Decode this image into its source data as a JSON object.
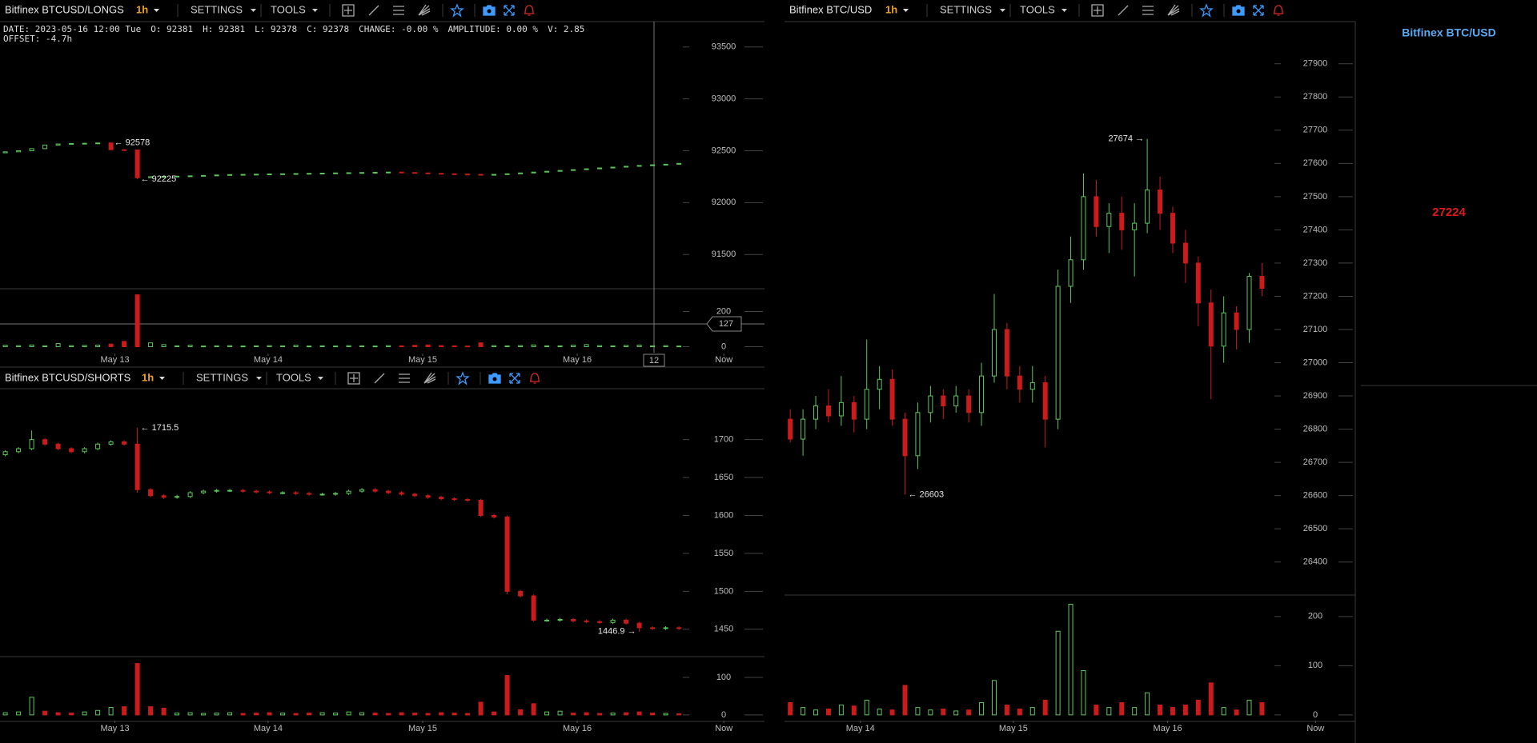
{
  "panels": [
    {
      "toolbar": {
        "symbol": "Bitfinex BTCUSD/LONGS",
        "interval": "1h",
        "settings": "SETTINGS",
        "tools": "TOOLS"
      },
      "legend": {
        "date": "DATE: 2023-05-16 12:00 Tue",
        "open": "O: 92381",
        "high": "H: 92381",
        "low": "L: 92378",
        "close": "C: 92378",
        "change": "CHANGE: -0.00 %",
        "amplitude": "AMPLITUDE: 0.00 %",
        "volume": "V: 2.85",
        "offset": "OFFSET: -4.7h"
      },
      "crosshair": {
        "x_label": "12",
        "y_label": "127"
      },
      "chart": {
        "type": "candlestick",
        "up_color": "#5cc85c",
        "down_color": "#cc1b1b",
        "xlim": [
          -0.4,
          57.48
        ],
        "xticks": [
          {
            "value": 8.3,
            "label": "May 13"
          },
          {
            "value": 19.9,
            "label": "May 14"
          },
          {
            "value": 31.6,
            "label": "May 15"
          },
          {
            "value": 43.3,
            "label": "May 16"
          },
          {
            "value": 54.4,
            "label": "Now"
          }
        ],
        "ylim": [
          91170,
          93745
        ],
        "yticks": [
          91500,
          92000,
          92500,
          93000,
          93500
        ],
        "open": [
          92480,
          92490,
          92500,
          92520,
          92555,
          92565,
          92570,
          92572,
          92575,
          92510,
          92508,
          92240,
          92250,
          92252,
          92255,
          92258,
          92262,
          92266,
          92270,
          92272,
          92274,
          92276,
          92278,
          92280,
          92282,
          92284,
          92286,
          92288,
          92290,
          92292,
          92294,
          92290,
          92286,
          92282,
          92278,
          92275,
          92272,
          92270,
          92272,
          92278,
          92286,
          92294,
          92302,
          92310,
          92318,
          92326,
          92334,
          92342,
          92350,
          92358,
          92364,
          92370
        ],
        "high": [
          92492,
          92502,
          92522,
          92557,
          92567,
          92572,
          92574,
          92577,
          92578,
          92512,
          92512,
          92252,
          92254,
          92257,
          92260,
          92264,
          92268,
          92272,
          92274,
          92276,
          92278,
          92280,
          92282,
          92284,
          92286,
          92288,
          92290,
          92292,
          92294,
          92296,
          92296,
          92292,
          92288,
          92284,
          92280,
          92277,
          92274,
          92274,
          92280,
          92288,
          92296,
          92304,
          92312,
          92320,
          92328,
          92336,
          92344,
          92352,
          92360,
          92366,
          92372,
          92380
        ],
        "low": [
          92478,
          92488,
          92498,
          92518,
          92553,
          92563,
          92568,
          92570,
          92508,
          92506,
          92225,
          92238,
          92248,
          92250,
          92253,
          92256,
          92260,
          92264,
          92268,
          92270,
          92272,
          92274,
          92276,
          92278,
          92280,
          92282,
          92284,
          92286,
          92288,
          92290,
          92288,
          92284,
          92280,
          92276,
          92273,
          92270,
          92268,
          92268,
          92270,
          92276,
          92284,
          92292,
          92300,
          92308,
          92316,
          92324,
          92332,
          92340,
          92348,
          92356,
          92362,
          92368
        ],
        "close": [
          92490,
          92500,
          92520,
          92555,
          92565,
          92570,
          92572,
          92575,
          92510,
          92508,
          92240,
          92250,
          92252,
          92255,
          92258,
          92262,
          92266,
          92270,
          92272,
          92274,
          92276,
          92278,
          92280,
          92282,
          92284,
          92286,
          92288,
          92290,
          92292,
          92294,
          92290,
          92286,
          92282,
          92278,
          92275,
          92272,
          92270,
          92272,
          92278,
          92286,
          92294,
          92302,
          92310,
          92318,
          92326,
          92334,
          92342,
          92350,
          92358,
          92364,
          92370,
          92378
        ],
        "annotations": [
          {
            "index": 8,
            "field": "high",
            "side": "right",
            "label": "← 92578"
          },
          {
            "index": 10,
            "field": "low",
            "side": "right",
            "label": "← 92225"
          }
        ],
        "volume": {
          "ylim": [
            -34,
            325
          ],
          "yticks": [
            0,
            200
          ],
          "values": [
            8,
            6,
            10,
            5,
            18,
            6,
            7,
            9,
            15,
            30,
            295,
            22,
            12,
            5,
            8,
            4,
            5,
            6,
            4,
            5,
            6,
            5,
            8,
            4,
            5,
            4,
            6,
            5,
            4,
            6,
            5,
            8,
            10,
            6,
            5,
            4,
            22,
            6,
            5,
            6,
            10,
            5,
            5,
            8,
            12,
            6,
            5,
            7,
            9,
            5,
            6,
            4
          ]
        }
      }
    },
    {
      "toolbar": {
        "symbol": "Bitfinex BTCUSD/SHORTS",
        "interval": "1h",
        "settings": "SETTINGS",
        "tools": "TOOLS"
      },
      "chart": {
        "type": "candlestick",
        "up_color": "#5cc85c",
        "down_color": "#cc1b1b",
        "xlim": [
          -0.4,
          57.48
        ],
        "xticks": [
          {
            "value": 8.3,
            "label": "May 13"
          },
          {
            "value": 19.9,
            "label": "May 14"
          },
          {
            "value": 31.6,
            "label": "May 15"
          },
          {
            "value": 43.3,
            "label": "May 16"
          },
          {
            "value": 54.4,
            "label": "Now"
          }
        ],
        "ylim": [
          1415,
          1766
        ],
        "yticks": [
          1450,
          1500,
          1550,
          1600,
          1650,
          1700
        ],
        "open": [
          1680,
          1684,
          1688,
          1700,
          1694,
          1688,
          1684,
          1688,
          1694,
          1697,
          1694,
          1634,
          1626,
          1624,
          1625,
          1630,
          1632,
          1633,
          1633,
          1632,
          1631,
          1630,
          1630,
          1629,
          1628,
          1628,
          1629,
          1632,
          1634,
          1632,
          1630,
          1628,
          1626,
          1624,
          1622,
          1621,
          1620,
          1600,
          1598,
          1500,
          1494,
          1462,
          1462,
          1463,
          1461,
          1460,
          1459,
          1462,
          1458,
          1452,
          1451,
          1452
        ],
        "high": [
          1686,
          1690,
          1712,
          1702,
          1696,
          1690,
          1690,
          1696,
          1699,
          1699,
          1715.5,
          1636,
          1628,
          1627,
          1632,
          1634,
          1635,
          1635,
          1635,
          1634,
          1633,
          1632,
          1632,
          1631,
          1630,
          1631,
          1634,
          1636,
          1636,
          1634,
          1632,
          1630,
          1628,
          1626,
          1624,
          1623,
          1622,
          1602,
          1600,
          1502,
          1496,
          1464,
          1465,
          1465,
          1463,
          1462,
          1464,
          1464,
          1460,
          1454,
          1454,
          1454
        ],
        "low": [
          1678,
          1682,
          1686,
          1692,
          1686,
          1682,
          1682,
          1686,
          1692,
          1692,
          1630,
          1624,
          1622,
          1622,
          1623,
          1628,
          1630,
          1631,
          1630,
          1629,
          1628,
          1628,
          1627,
          1626,
          1626,
          1626,
          1627,
          1630,
          1630,
          1628,
          1626,
          1624,
          1622,
          1620,
          1619,
          1618,
          1598,
          1596,
          1496,
          1492,
          1460,
          1460,
          1460,
          1459,
          1458,
          1457,
          1457,
          1456,
          1446.9,
          1449,
          1449,
          1449
        ],
        "close": [
          1684,
          1688,
          1700,
          1694,
          1688,
          1684,
          1688,
          1694,
          1697,
          1694,
          1634,
          1626,
          1624,
          1625,
          1630,
          1632,
          1633,
          1633,
          1632,
          1631,
          1630,
          1630,
          1629,
          1628,
          1628,
          1629,
          1632,
          1634,
          1632,
          1630,
          1628,
          1626,
          1624,
          1622,
          1621,
          1620,
          1600,
          1598,
          1500,
          1494,
          1462,
          1462,
          1463,
          1461,
          1460,
          1459,
          1462,
          1458,
          1452,
          1451,
          1452,
          1451
        ],
        "annotations": [
          {
            "index": 10,
            "field": "high",
            "side": "right",
            "label": "← 1715.5"
          },
          {
            "index": 48,
            "field": "low",
            "side": "left",
            "label": "1446.9 →"
          }
        ],
        "volume": {
          "ylim": [
            -13,
            151
          ],
          "yticks": [
            0,
            100
          ],
          "values": [
            6,
            8,
            47,
            10,
            6,
            5,
            8,
            12,
            20,
            22,
            137,
            22,
            18,
            5,
            6,
            4,
            5,
            6,
            4,
            5,
            6,
            5,
            4,
            5,
            6,
            5,
            8,
            6,
            5,
            4,
            6,
            5,
            4,
            6,
            5,
            4,
            34,
            8,
            105,
            14,
            30,
            8,
            10,
            5,
            6,
            4,
            5,
            6,
            8,
            5,
            4,
            3
          ]
        }
      }
    },
    {
      "toolbar": {
        "symbol": "Bitfinex BTC/USD",
        "interval": "1h",
        "settings": "SETTINGS",
        "tools": "TOOLS"
      },
      "chart": {
        "type": "candlestick",
        "up_color": "#5cc85c",
        "down_color": "#cc1b1b",
        "xlim": [
          -0.45,
          43
        ],
        "xticks": [
          {
            "value": 5.5,
            "label": "May 14"
          },
          {
            "value": 17.5,
            "label": "May 15"
          },
          {
            "value": 29.6,
            "label": "May 16"
          },
          {
            "value": 41.2,
            "label": "Now"
          }
        ],
        "ylim": [
          26303,
          28027
        ],
        "yticks": [
          26400,
          26500,
          26600,
          26700,
          26800,
          26900,
          27000,
          27100,
          27200,
          27300,
          27400,
          27500,
          27600,
          27700,
          27800,
          27900
        ],
        "open": [
          26830,
          26770,
          26830,
          26870,
          26840,
          26880,
          26830,
          26920,
          26950,
          26830,
          26720,
          26850,
          26900,
          26870,
          26900,
          26850,
          26960,
          27100,
          26960,
          26920,
          26940,
          26830,
          27230,
          27310,
          27500,
          27410,
          27450,
          27400,
          27420,
          27520,
          27450,
          27360,
          27300,
          27180,
          27050,
          27150,
          27100,
          27260
        ],
        "high": [
          26860,
          26860,
          26900,
          26920,
          26960,
          26900,
          27070,
          26990,
          26980,
          26850,
          26880,
          26930,
          26920,
          26930,
          26920,
          27000,
          27207,
          27120,
          26990,
          26990,
          26960,
          27280,
          27380,
          27570,
          27550,
          27480,
          27500,
          27480,
          27674,
          27560,
          27470,
          27400,
          27320,
          27220,
          27200,
          27170,
          27270,
          27300
        ],
        "low": [
          26760,
          26720,
          26800,
          26820,
          26810,
          26790,
          26800,
          26860,
          26810,
          26603,
          26680,
          26820,
          26830,
          26850,
          26820,
          26810,
          26940,
          26920,
          26880,
          26880,
          26745,
          26800,
          27180,
          27280,
          27380,
          27330,
          27340,
          27260,
          27390,
          27400,
          27330,
          27240,
          27110,
          26890,
          27000,
          27040,
          27060,
          27200
        ],
        "close": [
          26770,
          26830,
          26870,
          26840,
          26880,
          26830,
          26920,
          26950,
          26830,
          26720,
          26850,
          26900,
          26870,
          26900,
          26850,
          26960,
          27100,
          26960,
          26920,
          26940,
          26830,
          27230,
          27310,
          27500,
          27410,
          27450,
          27400,
          27420,
          27520,
          27450,
          27360,
          27300,
          27180,
          27050,
          27150,
          27100,
          27260,
          27224
        ],
        "annotations": [
          {
            "index": 28,
            "field": "high",
            "side": "left",
            "label": "27674 →"
          },
          {
            "index": 9,
            "field": "low",
            "side": "right",
            "label": "← 26603"
          }
        ],
        "volume": {
          "ylim": [
            -10,
            242
          ],
          "yticks": [
            0,
            100,
            200
          ],
          "values": [
            25,
            15,
            10,
            12,
            20,
            18,
            30,
            12,
            10,
            60,
            15,
            10,
            12,
            8,
            10,
            25,
            70,
            20,
            12,
            15,
            30,
            170,
            225,
            90,
            20,
            15,
            25,
            15,
            45,
            20,
            15,
            20,
            30,
            65,
            15,
            10,
            30,
            25
          ]
        }
      }
    }
  ],
  "sidebar": {
    "title": "Bitfinex BTC/USD",
    "last_price": 27224
  }
}
